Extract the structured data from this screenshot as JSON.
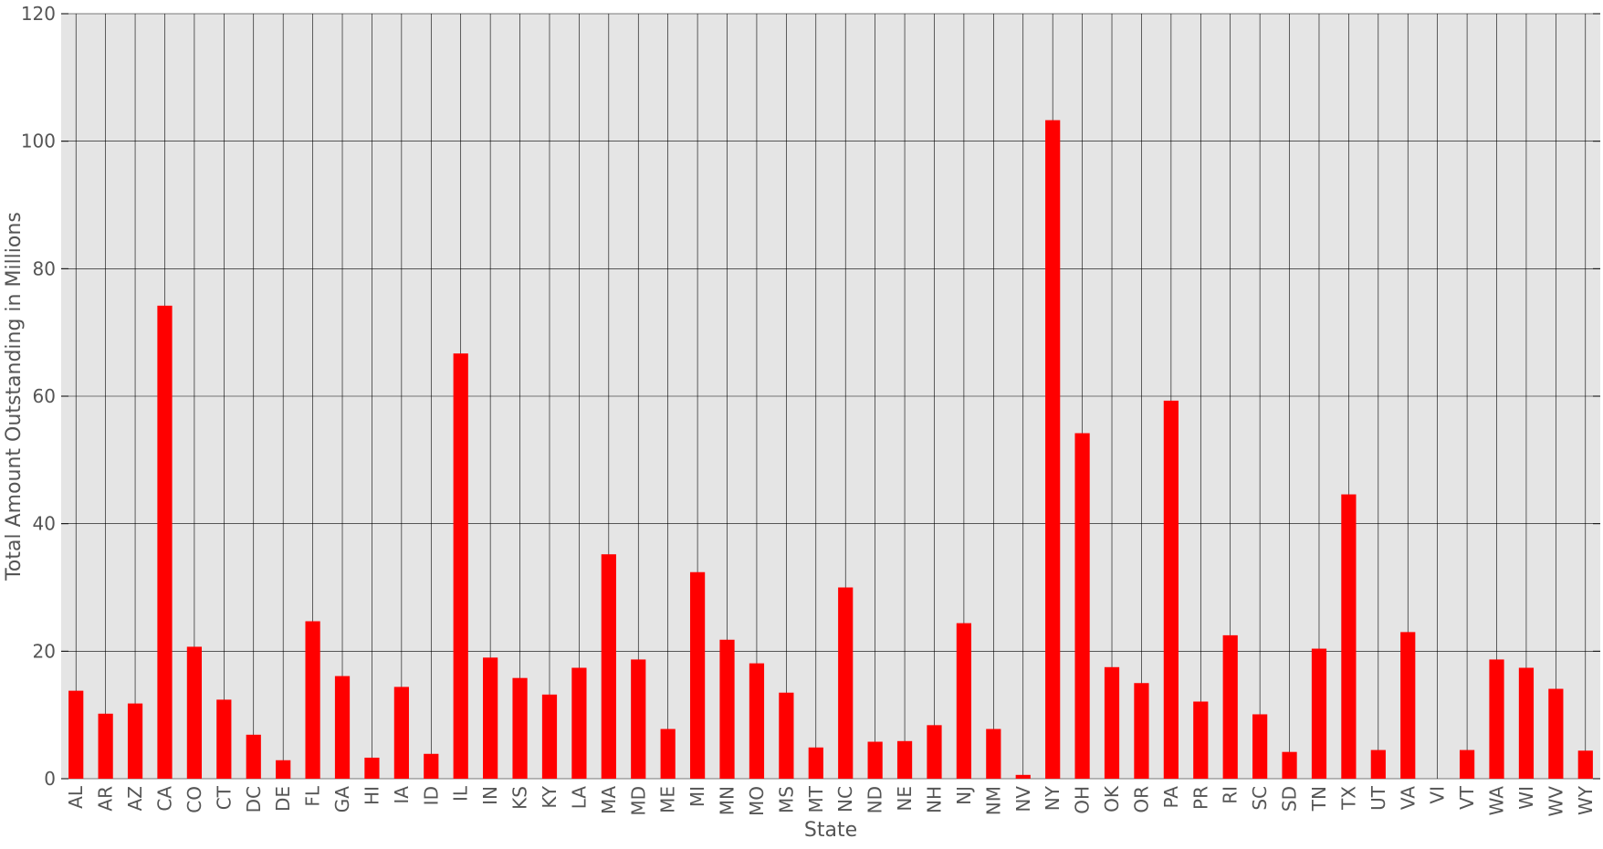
{
  "chart_data": {
    "type": "bar",
    "title": "",
    "xlabel": "State",
    "ylabel": "Total Amount Outstanding in Millions",
    "ylim": [
      0,
      120
    ],
    "yticks": [
      0,
      20,
      40,
      60,
      80,
      100,
      120
    ],
    "grid": true,
    "legend": "none",
    "bar_color": "#ff0000",
    "background_color": "#e5e5e5",
    "grid_color": "#000000",
    "categories": [
      "AL",
      "AR",
      "AZ",
      "CA",
      "CO",
      "CT",
      "DC",
      "DE",
      "FL",
      "GA",
      "HI",
      "IA",
      "ID",
      "IL",
      "IN",
      "KS",
      "KY",
      "LA",
      "MA",
      "MD",
      "ME",
      "MI",
      "MN",
      "MO",
      "MS",
      "MT",
      "NC",
      "ND",
      "NE",
      "NH",
      "NJ",
      "NM",
      "NV",
      "NY",
      "OH",
      "OK",
      "OR",
      "PA",
      "PR",
      "RI",
      "SC",
      "SD",
      "TN",
      "TX",
      "UT",
      "VA",
      "VI",
      "VT",
      "WA",
      "WI",
      "WV",
      "WY"
    ],
    "values": [
      13.8,
      10.2,
      11.8,
      74.2,
      20.7,
      12.4,
      6.9,
      2.9,
      24.7,
      16.1,
      3.3,
      14.4,
      3.9,
      66.7,
      19.0,
      15.8,
      13.2,
      17.4,
      35.2,
      18.7,
      7.8,
      32.4,
      21.8,
      18.1,
      13.5,
      4.9,
      30.0,
      5.8,
      5.9,
      8.4,
      24.4,
      7.8,
      0.6,
      103.3,
      54.2,
      17.5,
      15.0,
      59.3,
      12.1,
      22.5,
      10.1,
      4.2,
      20.4,
      44.6,
      4.5,
      23.0,
      0.0,
      4.5,
      18.7,
      17.4,
      14.1,
      4.4
    ]
  }
}
